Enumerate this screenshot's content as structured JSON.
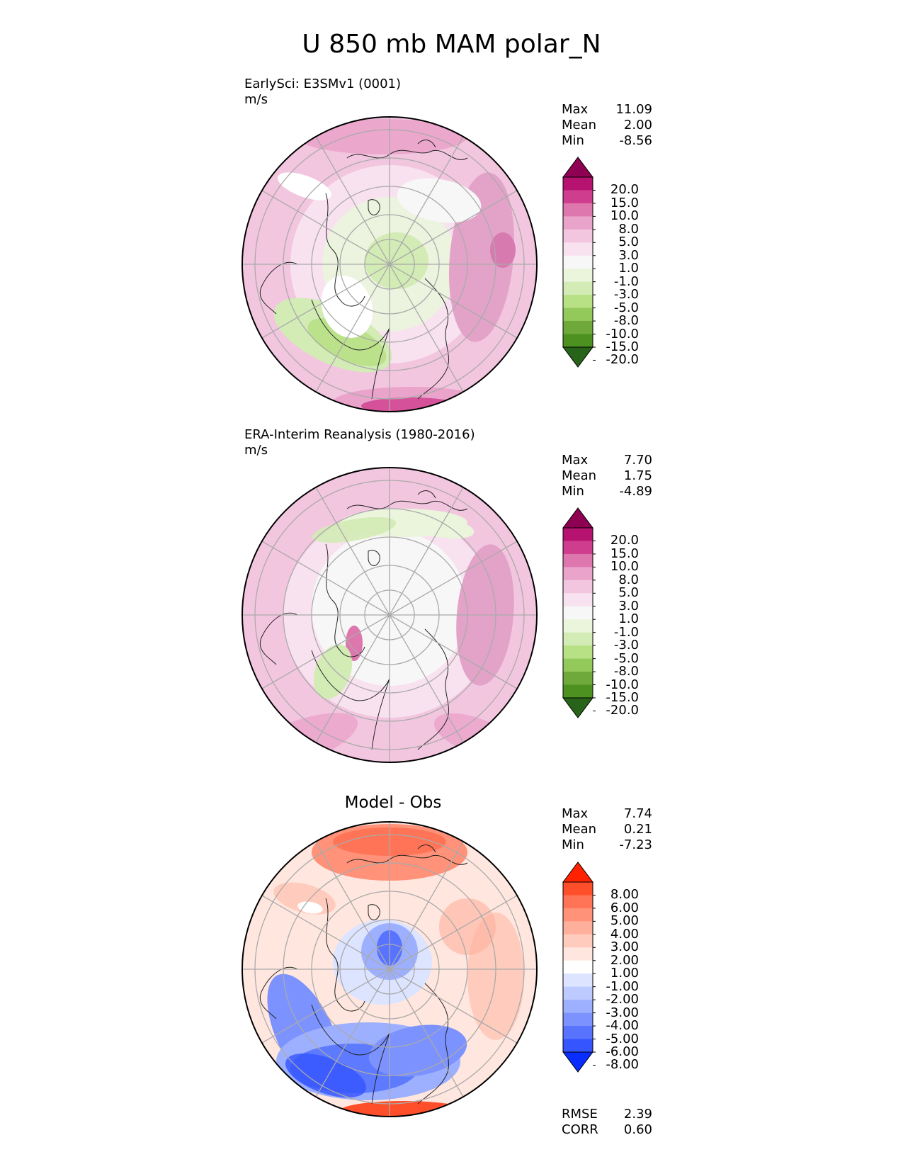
{
  "figure": {
    "title": "U 850 mb MAM polar_N"
  },
  "panels": [
    {
      "id": "model",
      "title": "EarlySci: E3SMv1 (0001)",
      "units": "m/s",
      "stats": [
        {
          "label": "Max",
          "value": "11.09"
        },
        {
          "label": "Mean",
          "value": "2.00"
        },
        {
          "label": "Min",
          "value": "-8.56"
        }
      ],
      "colorbar_levels": [
        "20.0",
        "15.0",
        "10.0",
        "8.0",
        "5.0",
        "3.0",
        "1.0",
        "-1.0",
        "-3.0",
        "-5.0",
        "-8.0",
        "-10.0",
        "-15.0",
        "-20.0"
      ],
      "colorbar_colors": [
        "#8e0152",
        "#b5136f",
        "#cf3d8e",
        "#de77ae",
        "#eaa3ca",
        "#f3c6e0",
        "#f9e2ef",
        "#f7f7f7",
        "#eaf5dc",
        "#d3ebb5",
        "#b8e186",
        "#93c95b",
        "#6fa83b",
        "#4d9221",
        "#276419"
      ]
    },
    {
      "id": "obs",
      "title": "ERA-Interim Reanalysis (1980-2016)",
      "units": "m/s",
      "stats": [
        {
          "label": "Max",
          "value": "7.70"
        },
        {
          "label": "Mean",
          "value": "1.75"
        },
        {
          "label": "Min",
          "value": "-4.89"
        }
      ],
      "colorbar_levels": [
        "20.0",
        "15.0",
        "10.0",
        "8.0",
        "5.0",
        "3.0",
        "1.0",
        "-1.0",
        "-3.0",
        "-5.0",
        "-8.0",
        "-10.0",
        "-15.0",
        "-20.0"
      ],
      "colorbar_colors": [
        "#8e0152",
        "#b5136f",
        "#cf3d8e",
        "#de77ae",
        "#eaa3ca",
        "#f3c6e0",
        "#f9e2ef",
        "#f7f7f7",
        "#eaf5dc",
        "#d3ebb5",
        "#b8e186",
        "#93c95b",
        "#6fa83b",
        "#4d9221",
        "#276419"
      ]
    },
    {
      "id": "diff",
      "title": "Model - Obs",
      "stats": [
        {
          "label": "Max",
          "value": "7.74"
        },
        {
          "label": "Mean",
          "value": "0.21"
        },
        {
          "label": "Min",
          "value": "-7.23"
        }
      ],
      "extra_stats": [
        {
          "label": "RMSE",
          "value": "2.39"
        },
        {
          "label": "CORR",
          "value": "0.60"
        }
      ],
      "colorbar_levels": [
        "8.00",
        "6.00",
        "5.00",
        "4.00",
        "3.00",
        "2.00",
        "1.00",
        "-1.00",
        "-2.00",
        "-3.00",
        "-4.00",
        "-5.00",
        "-6.00",
        "-8.00"
      ],
      "colorbar_colors": [
        "#ff2200",
        "#ff4e2a",
        "#ff7456",
        "#ff9278",
        "#ffb09d",
        "#ffcbbd",
        "#ffe6de",
        "#ffffff",
        "#dce4ff",
        "#bccaff",
        "#9db0ff",
        "#7b92ff",
        "#5874ff",
        "#3555ff",
        "#0a2dff"
      ]
    }
  ]
}
